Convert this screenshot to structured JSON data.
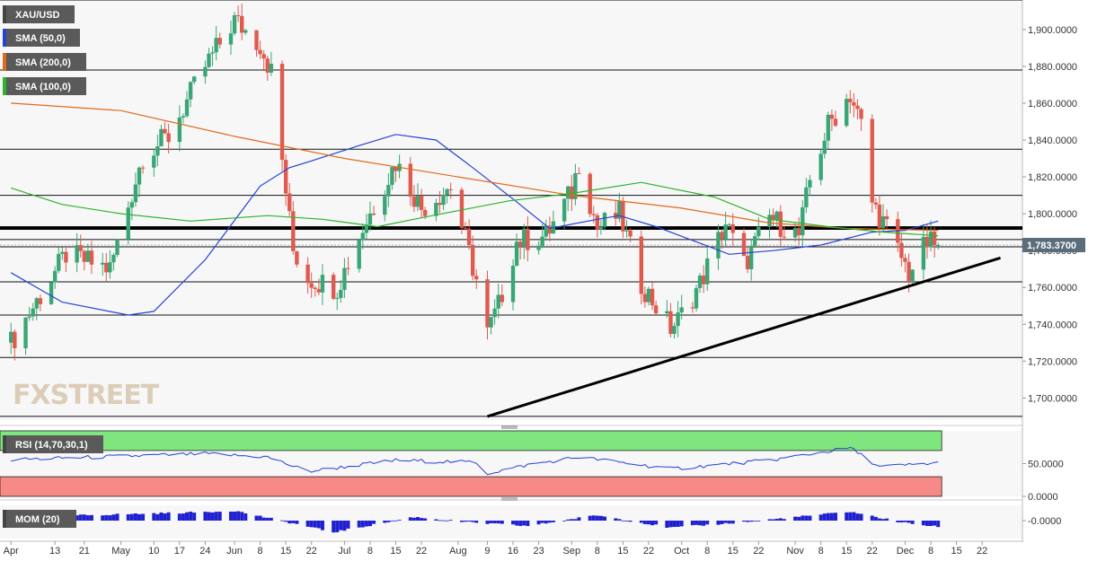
{
  "colors": {
    "up": "#3aa675",
    "down": "#df5a4f",
    "sma50": "#2541d6",
    "sma200": "#e06b1a",
    "sma100": "#2db32d",
    "rsi_line": "#2541d6",
    "rsi_upper_zone": "#7fe67f",
    "rsi_lower_zone": "#f58a86",
    "mom": "#2020d0",
    "legend_bg": "#5a5a5a",
    "price_tag_bg": "#5b6d7a"
  },
  "chart_data": [
    {
      "type": "candlestick",
      "symbol": "XAU/USD",
      "last_price_label": "1,783.3700",
      "ylim": [
        1688,
        1916
      ],
      "y_ticks": [
        "1,700.0000",
        "1,720.0000",
        "1,740.0000",
        "1,760.0000",
        "1,780.0000",
        "1,800.0000",
        "1,820.0000",
        "1,840.0000",
        "1,860.0000",
        "1,880.0000",
        "1,900.0000"
      ],
      "y_tick_values": [
        1700,
        1720,
        1740,
        1760,
        1780,
        1800,
        1820,
        1840,
        1860,
        1880,
        1900
      ],
      "x_ticks": [
        "Apr",
        "13",
        "21",
        "May",
        "10",
        "17",
        "24",
        "Jun",
        "8",
        "15",
        "22",
        "Jul",
        "8",
        "15",
        "22",
        "Aug",
        "9",
        "16",
        "23",
        "Sep",
        "8",
        "15",
        "22",
        "Oct",
        "8",
        "15",
        "22",
        "Nov",
        "8",
        "15",
        "22",
        "Dec",
        "8",
        "15",
        "22"
      ],
      "horizontal_levels": [
        1916,
        1878,
        1835,
        1810,
        1793,
        1786,
        1782,
        1763,
        1745,
        1722,
        1690
      ],
      "key_level": 1792,
      "trendline": {
        "start": {
          "date": "2021-08-09",
          "price": 1690
        },
        "end": {
          "date": "2021-12-27",
          "price": 1776
        }
      },
      "anchors": [
        {
          "date": "2021-04-01",
          "price": 1730
        },
        {
          "date": "2021-04-16",
          "price": 1778
        },
        {
          "date": "2021-04-28",
          "price": 1770
        },
        {
          "date": "2021-05-07",
          "price": 1832
        },
        {
          "date": "2021-05-14",
          "price": 1842
        },
        {
          "date": "2021-05-24",
          "price": 1880
        },
        {
          "date": "2021-06-01",
          "price": 1905
        },
        {
          "date": "2021-06-08",
          "price": 1892
        },
        {
          "date": "2021-06-11",
          "price": 1877
        },
        {
          "date": "2021-06-17",
          "price": 1780
        },
        {
          "date": "2021-06-21",
          "price": 1765
        },
        {
          "date": "2021-06-29",
          "price": 1760
        },
        {
          "date": "2021-07-06",
          "price": 1792
        },
        {
          "date": "2021-07-15",
          "price": 1828
        },
        {
          "date": "2021-07-22",
          "price": 1803
        },
        {
          "date": "2021-07-30",
          "price": 1815
        },
        {
          "date": "2021-08-06",
          "price": 1764
        },
        {
          "date": "2021-08-09",
          "price": 1735
        },
        {
          "date": "2021-08-12",
          "price": 1750
        },
        {
          "date": "2021-08-17",
          "price": 1785
        },
        {
          "date": "2021-08-25",
          "price": 1788
        },
        {
          "date": "2021-09-01",
          "price": 1812
        },
        {
          "date": "2021-09-03",
          "price": 1828
        },
        {
          "date": "2021-09-08",
          "price": 1792
        },
        {
          "date": "2021-09-14",
          "price": 1800
        },
        {
          "date": "2021-09-20",
          "price": 1762
        },
        {
          "date": "2021-09-28",
          "price": 1738
        },
        {
          "date": "2021-09-30",
          "price": 1742
        },
        {
          "date": "2021-10-06",
          "price": 1762
        },
        {
          "date": "2021-10-13",
          "price": 1795
        },
        {
          "date": "2021-10-18",
          "price": 1772
        },
        {
          "date": "2021-10-25",
          "price": 1798
        },
        {
          "date": "2021-11-02",
          "price": 1788
        },
        {
          "date": "2021-11-05",
          "price": 1818
        },
        {
          "date": "2021-11-10",
          "price": 1848
        },
        {
          "date": "2021-11-16",
          "price": 1865
        },
        {
          "date": "2021-11-19",
          "price": 1848
        },
        {
          "date": "2021-11-22",
          "price": 1806
        },
        {
          "date": "2021-11-26",
          "price": 1792
        },
        {
          "date": "2021-12-02",
          "price": 1768
        },
        {
          "date": "2021-12-07",
          "price": 1784
        },
        {
          "date": "2021-12-10",
          "price": 1783
        }
      ],
      "smas": [
        {
          "name": "SMA (50,0)",
          "key": "sma50",
          "points": [
            {
              "date": "2021-04-01",
              "price": 1768
            },
            {
              "date": "2021-04-15",
              "price": 1752
            },
            {
              "date": "2021-05-03",
              "price": 1745
            },
            {
              "date": "2021-05-10",
              "price": 1747
            },
            {
              "date": "2021-05-24",
              "price": 1775
            },
            {
              "date": "2021-06-08",
              "price": 1815
            },
            {
              "date": "2021-06-16",
              "price": 1825
            },
            {
              "date": "2021-06-21",
              "price": 1828
            },
            {
              "date": "2021-07-05",
              "price": 1837
            },
            {
              "date": "2021-07-15",
              "price": 1843
            },
            {
              "date": "2021-07-26",
              "price": 1840
            },
            {
              "date": "2021-08-05",
              "price": 1825
            },
            {
              "date": "2021-08-16",
              "price": 1808
            },
            {
              "date": "2021-08-26",
              "price": 1792
            },
            {
              "date": "2021-09-08",
              "price": 1797
            },
            {
              "date": "2021-09-14",
              "price": 1799
            },
            {
              "date": "2021-09-24",
              "price": 1793
            },
            {
              "date": "2021-10-06",
              "price": 1784
            },
            {
              "date": "2021-10-14",
              "price": 1778
            },
            {
              "date": "2021-10-26",
              "price": 1780
            },
            {
              "date": "2021-11-08",
              "price": 1783
            },
            {
              "date": "2021-11-22",
              "price": 1790
            },
            {
              "date": "2021-12-01",
              "price": 1791
            },
            {
              "date": "2021-12-10",
              "price": 1796
            }
          ]
        },
        {
          "name": "SMA (200,0)",
          "key": "sma200",
          "points": [
            {
              "date": "2021-04-01",
              "price": 1860
            },
            {
              "date": "2021-05-01",
              "price": 1856
            },
            {
              "date": "2021-06-01",
              "price": 1842
            },
            {
              "date": "2021-07-01",
              "price": 1830
            },
            {
              "date": "2021-08-01",
              "price": 1820
            },
            {
              "date": "2021-09-01",
              "price": 1810
            },
            {
              "date": "2021-10-01",
              "price": 1803
            },
            {
              "date": "2021-10-25",
              "price": 1795
            },
            {
              "date": "2021-11-15",
              "price": 1792
            },
            {
              "date": "2021-12-10",
              "price": 1791
            }
          ]
        },
        {
          "name": "SMA (100,0)",
          "key": "sma100",
          "points": [
            {
              "date": "2021-04-01",
              "price": 1814
            },
            {
              "date": "2021-04-15",
              "price": 1805
            },
            {
              "date": "2021-05-01",
              "price": 1800
            },
            {
              "date": "2021-05-20",
              "price": 1796
            },
            {
              "date": "2021-06-10",
              "price": 1799
            },
            {
              "date": "2021-06-25",
              "price": 1797
            },
            {
              "date": "2021-07-10",
              "price": 1793
            },
            {
              "date": "2021-07-25",
              "price": 1799
            },
            {
              "date": "2021-08-15",
              "price": 1807
            },
            {
              "date": "2021-09-01",
              "price": 1811
            },
            {
              "date": "2021-09-20",
              "price": 1817
            },
            {
              "date": "2021-10-10",
              "price": 1809
            },
            {
              "date": "2021-10-25",
              "price": 1797
            },
            {
              "date": "2021-11-10",
              "price": 1793
            },
            {
              "date": "2021-11-25",
              "price": 1790
            },
            {
              "date": "2021-12-10",
              "price": 1788
            }
          ]
        }
      ]
    },
    {
      "type": "line",
      "name": "RSI (14,70,30,1)",
      "ylim": [
        0,
        100
      ],
      "y_ticks": [
        "50.0000",
        "0.0000"
      ],
      "y_tick_values": [
        50,
        0
      ],
      "upper_level": 70,
      "lower_level": 30,
      "anchors": [
        {
          "date": "2021-04-01",
          "value": 56
        },
        {
          "date": "2021-05-24",
          "value": 65
        },
        {
          "date": "2021-06-10",
          "value": 60
        },
        {
          "date": "2021-06-21",
          "value": 38
        },
        {
          "date": "2021-07-15",
          "value": 55
        },
        {
          "date": "2021-08-06",
          "value": 52
        },
        {
          "date": "2021-08-09",
          "value": 35
        },
        {
          "date": "2021-08-20",
          "value": 48
        },
        {
          "date": "2021-09-03",
          "value": 60
        },
        {
          "date": "2021-09-28",
          "value": 42
        },
        {
          "date": "2021-10-25",
          "value": 55
        },
        {
          "date": "2021-11-16",
          "value": 74
        },
        {
          "date": "2021-11-24",
          "value": 45
        },
        {
          "date": "2021-12-10",
          "value": 51
        }
      ]
    },
    {
      "type": "bar",
      "name": "MOM (20)",
      "y_ticks": [
        "-0.0000"
      ],
      "anchors": [
        {
          "date": "2021-04-01",
          "value": 20
        },
        {
          "date": "2021-05-20",
          "value": 45
        },
        {
          "date": "2021-06-01",
          "value": 55
        },
        {
          "date": "2021-06-18",
          "value": -20
        },
        {
          "date": "2021-06-28",
          "value": -65
        },
        {
          "date": "2021-07-20",
          "value": 20
        },
        {
          "date": "2021-08-04",
          "value": -10
        },
        {
          "date": "2021-08-20",
          "value": -30
        },
        {
          "date": "2021-09-08",
          "value": 30
        },
        {
          "date": "2021-09-28",
          "value": -40
        },
        {
          "date": "2021-10-20",
          "value": -5
        },
        {
          "date": "2021-11-16",
          "value": 50
        },
        {
          "date": "2021-11-30",
          "value": -10
        },
        {
          "date": "2021-12-10",
          "value": -35
        }
      ]
    }
  ],
  "legend": {
    "symbol": "XAU/USD",
    "sma50": "SMA (50,0)",
    "sma200": "SMA (200,0)",
    "sma100": "SMA (100,0)",
    "rsi": "RSI (14,70,30,1)",
    "mom": "MOM (20)"
  },
  "logo": {
    "text": "FXSTREET"
  }
}
